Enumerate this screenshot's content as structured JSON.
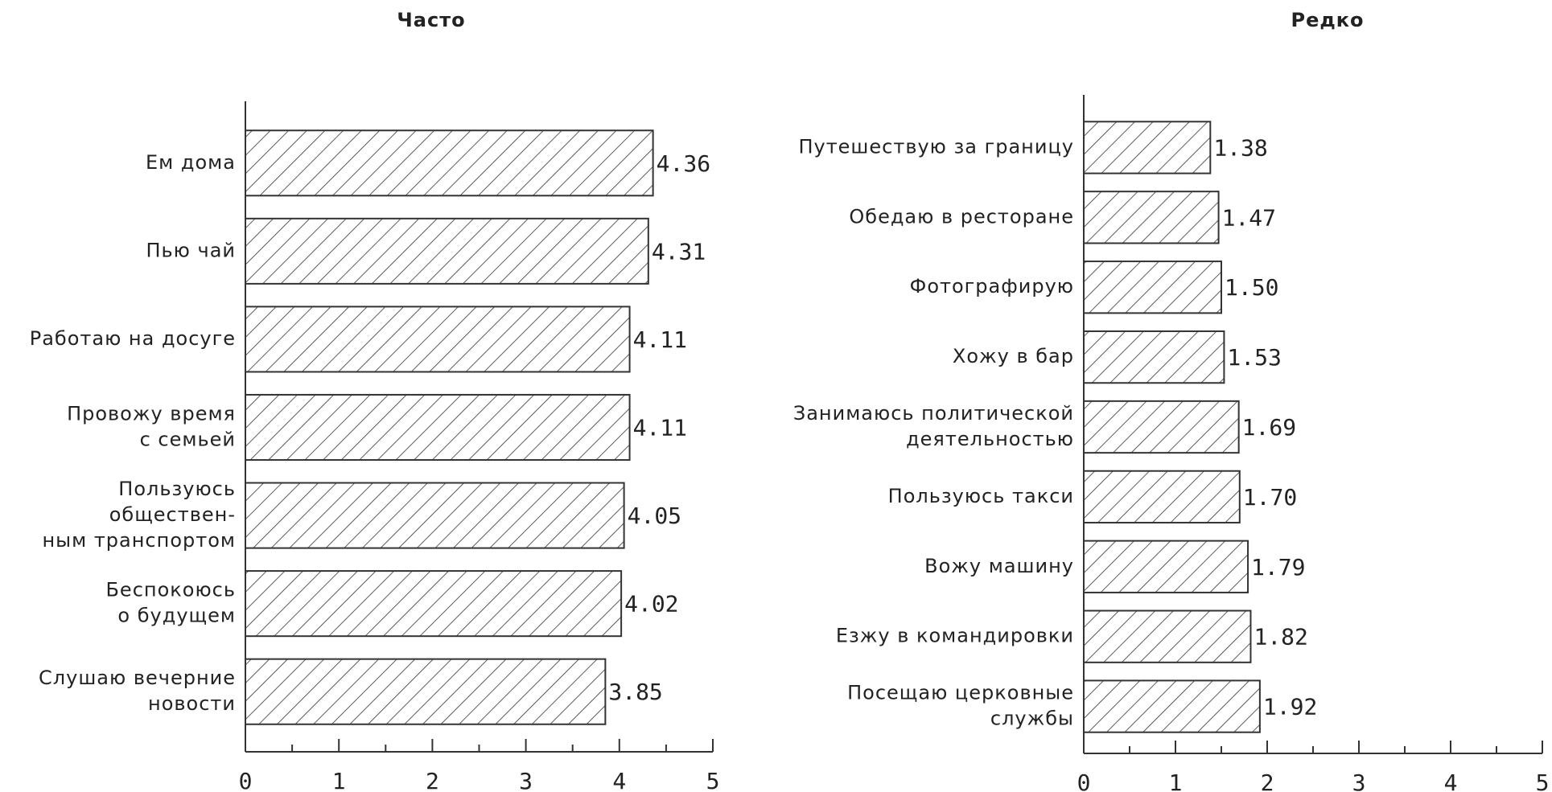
{
  "chart_data": [
    {
      "type": "bar",
      "title": "Часто",
      "categories": [
        [
          "Ем дома"
        ],
        [
          "Пью чай"
        ],
        [
          "Работаю на досуге"
        ],
        [
          "Провожу время",
          "с семьей"
        ],
        [
          "Пользуюсь",
          "обществен-",
          "ным транспортом"
        ],
        [
          "Беспокоюсь",
          "о будущем"
        ],
        [
          "Слушаю вечерние",
          "новости"
        ]
      ],
      "values": [
        4.36,
        4.31,
        4.11,
        4.11,
        4.05,
        4.02,
        3.85
      ],
      "value_labels": [
        "4.36",
        "4.31",
        "4.11",
        "4.11",
        "4.05",
        "4.02",
        "3.85"
      ],
      "xlim": [
        0,
        5
      ],
      "xticks": [
        0,
        1,
        2,
        3,
        4,
        5
      ],
      "minor_xticks": [
        0.5,
        1.5,
        2.5,
        3.5,
        4.5
      ],
      "color": "#333333"
    },
    {
      "type": "bar",
      "title": "Редко",
      "categories": [
        [
          "Путешествую за границу"
        ],
        [
          "Обедаю в ресторане"
        ],
        [
          "Фотографирую"
        ],
        [
          "Хожу в бар"
        ],
        [
          "Занимаюсь политической",
          "деятельностью"
        ],
        [
          "Пользуюсь такси"
        ],
        [
          "Вожу машину"
        ],
        [
          "Езжу в командировки"
        ],
        [
          "Посещаю церковные",
          "службы"
        ]
      ],
      "values": [
        1.38,
        1.47,
        1.5,
        1.53,
        1.69,
        1.7,
        1.79,
        1.82,
        1.92
      ],
      "value_labels": [
        "1.38",
        "1.47",
        "1.50",
        "1.53",
        "1.69",
        "1.70",
        "1.79",
        "1.82",
        "1.92"
      ],
      "xlim": [
        0,
        5
      ],
      "xticks": [
        0,
        1,
        2,
        3,
        4,
        5
      ],
      "minor_xticks": [
        0.5,
        1.5,
        2.5,
        3.5,
        4.5
      ],
      "color": "#333333"
    }
  ]
}
